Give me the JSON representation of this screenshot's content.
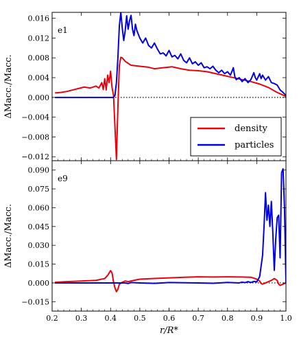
{
  "chart_data": [
    {
      "type": "line",
      "panel_label": "e1",
      "xlabel": "r/R*",
      "ylabel": "ΔMacc./Macc.",
      "xlim": [
        0.2,
        1.0
      ],
      "ylim": [
        -0.0128,
        0.0172
      ],
      "x_ticks": [
        0.2,
        0.3,
        0.4,
        0.5,
        0.6,
        0.7,
        0.8,
        0.9,
        1.0
      ],
      "x_tick_labels": [],
      "y_ticks": [
        -0.012,
        -0.008,
        -0.004,
        0.0,
        0.004,
        0.008,
        0.012,
        0.016
      ],
      "y_tick_labels": [
        "−0.012",
        "−0.008",
        "−0.004",
        "0.000",
        "0.004",
        "0.008",
        "0.012",
        "0.016"
      ],
      "zero_line": "dotted",
      "legend": {
        "placement": "lower-right",
        "entries": [
          {
            "label": "density",
            "color": "#e8000b"
          },
          {
            "label": "particles",
            "color": "#0000e0"
          }
        ]
      },
      "series": [
        {
          "name": "density",
          "color": "#e8000b",
          "points": [
            [
              0.21,
              0.0009
            ],
            [
              0.23,
              0.001
            ],
            [
              0.25,
              0.0012
            ],
            [
              0.27,
              0.0015
            ],
            [
              0.29,
              0.0018
            ],
            [
              0.31,
              0.0021
            ],
            [
              0.33,
              0.0019
            ],
            [
              0.35,
              0.0023
            ],
            [
              0.36,
              0.0019
            ],
            [
              0.37,
              0.003
            ],
            [
              0.375,
              0.0016
            ],
            [
              0.38,
              0.0038
            ],
            [
              0.385,
              0.0015
            ],
            [
              0.39,
              0.0045
            ],
            [
              0.395,
              0.003
            ],
            [
              0.4,
              0.0053
            ],
            [
              0.405,
              0.002
            ],
            [
              0.41,
              0.0005
            ],
            [
              0.415,
              -0.006
            ],
            [
              0.42,
              -0.0125
            ],
            [
              0.425,
              -0.002
            ],
            [
              0.43,
              0.0065
            ],
            [
              0.435,
              0.0081
            ],
            [
              0.44,
              0.008
            ],
            [
              0.45,
              0.0073
            ],
            [
              0.47,
              0.0065
            ],
            [
              0.5,
              0.0063
            ],
            [
              0.53,
              0.0061
            ],
            [
              0.55,
              0.0058
            ],
            [
              0.58,
              0.006
            ],
            [
              0.61,
              0.0062
            ],
            [
              0.64,
              0.0058
            ],
            [
              0.67,
              0.0055
            ],
            [
              0.7,
              0.0054
            ],
            [
              0.73,
              0.0052
            ],
            [
              0.76,
              0.0048
            ],
            [
              0.79,
              0.0044
            ],
            [
              0.82,
              0.004
            ],
            [
              0.85,
              0.0036
            ],
            [
              0.88,
              0.0032
            ],
            [
              0.91,
              0.0027
            ],
            [
              0.94,
              0.002
            ],
            [
              0.97,
              0.001
            ],
            [
              1.0,
              0.0002
            ]
          ]
        },
        {
          "name": "particles",
          "color": "#0000e0",
          "points": [
            [
              0.21,
              0.0
            ],
            [
              0.3,
              0.0
            ],
            [
              0.4,
              0.0
            ],
            [
              0.41,
              0.0
            ],
            [
              0.415,
              0.0004
            ],
            [
              0.42,
              0.003
            ],
            [
              0.425,
              0.008
            ],
            [
              0.43,
              0.0145
            ],
            [
              0.435,
              0.0172
            ],
            [
              0.44,
              0.014
            ],
            [
              0.445,
              0.0115
            ],
            [
              0.45,
              0.0135
            ],
            [
              0.455,
              0.0165
            ],
            [
              0.46,
              0.0138
            ],
            [
              0.465,
              0.0155
            ],
            [
              0.47,
              0.0166
            ],
            [
              0.475,
              0.0138
            ],
            [
              0.48,
              0.0125
            ],
            [
              0.485,
              0.0148
            ],
            [
              0.49,
              0.0135
            ],
            [
              0.5,
              0.012
            ],
            [
              0.51,
              0.011
            ],
            [
              0.52,
              0.012
            ],
            [
              0.53,
              0.0105
            ],
            [
              0.54,
              0.01
            ],
            [
              0.55,
              0.011
            ],
            [
              0.56,
              0.0098
            ],
            [
              0.57,
              0.0088
            ],
            [
              0.58,
              0.009
            ],
            [
              0.59,
              0.0084
            ],
            [
              0.6,
              0.0095
            ],
            [
              0.61,
              0.0082
            ],
            [
              0.62,
              0.0085
            ],
            [
              0.63,
              0.0078
            ],
            [
              0.64,
              0.0088
            ],
            [
              0.65,
              0.0075
            ],
            [
              0.66,
              0.007
            ],
            [
              0.67,
              0.008
            ],
            [
              0.68,
              0.0068
            ],
            [
              0.69,
              0.0072
            ],
            [
              0.7,
              0.0065
            ],
            [
              0.71,
              0.007
            ],
            [
              0.72,
              0.006
            ],
            [
              0.73,
              0.0062
            ],
            [
              0.74,
              0.0058
            ],
            [
              0.75,
              0.0063
            ],
            [
              0.76,
              0.0055
            ],
            [
              0.77,
              0.005
            ],
            [
              0.78,
              0.0055
            ],
            [
              0.79,
              0.0048
            ],
            [
              0.8,
              0.0052
            ],
            [
              0.81,
              0.0045
            ],
            [
              0.82,
              0.006
            ],
            [
              0.825,
              0.0042
            ],
            [
              0.83,
              0.0036
            ],
            [
              0.84,
              0.004
            ],
            [
              0.85,
              0.0032
            ],
            [
              0.86,
              0.0038
            ],
            [
              0.87,
              0.003
            ],
            [
              0.88,
              0.0036
            ],
            [
              0.89,
              0.005
            ],
            [
              0.895,
              0.004
            ],
            [
              0.9,
              0.0035
            ],
            [
              0.91,
              0.0048
            ],
            [
              0.915,
              0.0038
            ],
            [
              0.92,
              0.0045
            ],
            [
              0.93,
              0.0035
            ],
            [
              0.94,
              0.0042
            ],
            [
              0.95,
              0.003
            ],
            [
              0.96,
              0.0028
            ],
            [
              0.97,
              0.0025
            ],
            [
              0.98,
              0.0015
            ],
            [
              0.99,
              0.001
            ],
            [
              1.0,
              0.0004
            ]
          ]
        }
      ]
    },
    {
      "type": "line",
      "panel_label": "e9",
      "xlabel": "r/R*",
      "ylabel": "ΔMacc./Macc.",
      "xlim": [
        0.2,
        1.0
      ],
      "ylim": [
        -0.0225,
        0.0975
      ],
      "x_ticks": [
        0.2,
        0.3,
        0.4,
        0.5,
        0.6,
        0.7,
        0.8,
        0.9,
        1.0
      ],
      "x_tick_labels": [
        "0.2",
        "0.3",
        "0.4",
        "0.5",
        "0.6",
        "0.7",
        "0.8",
        "0.9",
        "1.0"
      ],
      "y_ticks": [
        -0.015,
        0.0,
        0.015,
        0.03,
        0.045,
        0.06,
        0.075,
        0.09
      ],
      "y_tick_labels": [
        "−0.015",
        "0.000",
        "0.015",
        "0.030",
        "0.045",
        "0.060",
        "0.075",
        "0.090"
      ],
      "zero_line": "dotted",
      "series": [
        {
          "name": "density",
          "color": "#e8000b",
          "points": [
            [
              0.21,
              0.0005
            ],
            [
              0.25,
              0.001
            ],
            [
              0.3,
              0.0015
            ],
            [
              0.35,
              0.002
            ],
            [
              0.38,
              0.0035
            ],
            [
              0.39,
              0.006
            ],
            [
              0.4,
              0.0098
            ],
            [
              0.405,
              0.008
            ],
            [
              0.41,
              0.001
            ],
            [
              0.415,
              -0.004
            ],
            [
              0.42,
              -0.007
            ],
            [
              0.425,
              -0.005
            ],
            [
              0.43,
              -0.001
            ],
            [
              0.44,
              0.0005
            ],
            [
              0.45,
              0.0015
            ],
            [
              0.46,
              0.001
            ],
            [
              0.48,
              0.002
            ],
            [
              0.5,
              0.003
            ],
            [
              0.55,
              0.0035
            ],
            [
              0.6,
              0.004
            ],
            [
              0.65,
              0.0045
            ],
            [
              0.7,
              0.0048
            ],
            [
              0.75,
              0.0047
            ],
            [
              0.8,
              0.0048
            ],
            [
              0.85,
              0.0047
            ],
            [
              0.88,
              0.0045
            ],
            [
              0.9,
              0.003
            ],
            [
              0.91,
              0.0015
            ],
            [
              0.915,
              -0.0005
            ],
            [
              0.92,
              -0.001
            ],
            [
              0.93,
              0.0
            ],
            [
              0.95,
              0.002
            ],
            [
              0.96,
              0.0035
            ],
            [
              0.97,
              0.002
            ],
            [
              0.975,
              -0.001
            ],
            [
              0.98,
              -0.002
            ],
            [
              0.99,
              -0.001
            ],
            [
              1.0,
              0.0
            ]
          ]
        },
        {
          "name": "particles",
          "color": "#0000e0",
          "points": [
            [
              0.21,
              0.0
            ],
            [
              0.45,
              0.0
            ],
            [
              0.46,
              -0.0005
            ],
            [
              0.47,
              0.0003
            ],
            [
              0.5,
              0.0
            ],
            [
              0.55,
              -0.0004
            ],
            [
              0.6,
              0.0003
            ],
            [
              0.7,
              0.0
            ],
            [
              0.75,
              -0.0003
            ],
            [
              0.8,
              0.0004
            ],
            [
              0.84,
              0.0
            ],
            [
              0.85,
              0.0006
            ],
            [
              0.86,
              0.0002
            ],
            [
              0.87,
              0.001
            ],
            [
              0.88,
              0.0003
            ],
            [
              0.89,
              0.0012
            ],
            [
              0.9,
              0.0008
            ],
            [
              0.91,
              0.005
            ],
            [
              0.92,
              0.022
            ],
            [
              0.925,
              0.045
            ],
            [
              0.93,
              0.072
            ],
            [
              0.935,
              0.05
            ],
            [
              0.94,
              0.062
            ],
            [
              0.945,
              0.045
            ],
            [
              0.95,
              0.065
            ],
            [
              0.955,
              0.04
            ],
            [
              0.96,
              0.01
            ],
            [
              0.965,
              0.035
            ],
            [
              0.97,
              0.052
            ],
            [
              0.975,
              0.054
            ],
            [
              0.98,
              0.02
            ],
            [
              0.985,
              0.088
            ],
            [
              0.99,
              0.091
            ],
            [
              0.995,
              0.06
            ],
            [
              1.0,
              0.0
            ]
          ]
        }
      ]
    }
  ]
}
